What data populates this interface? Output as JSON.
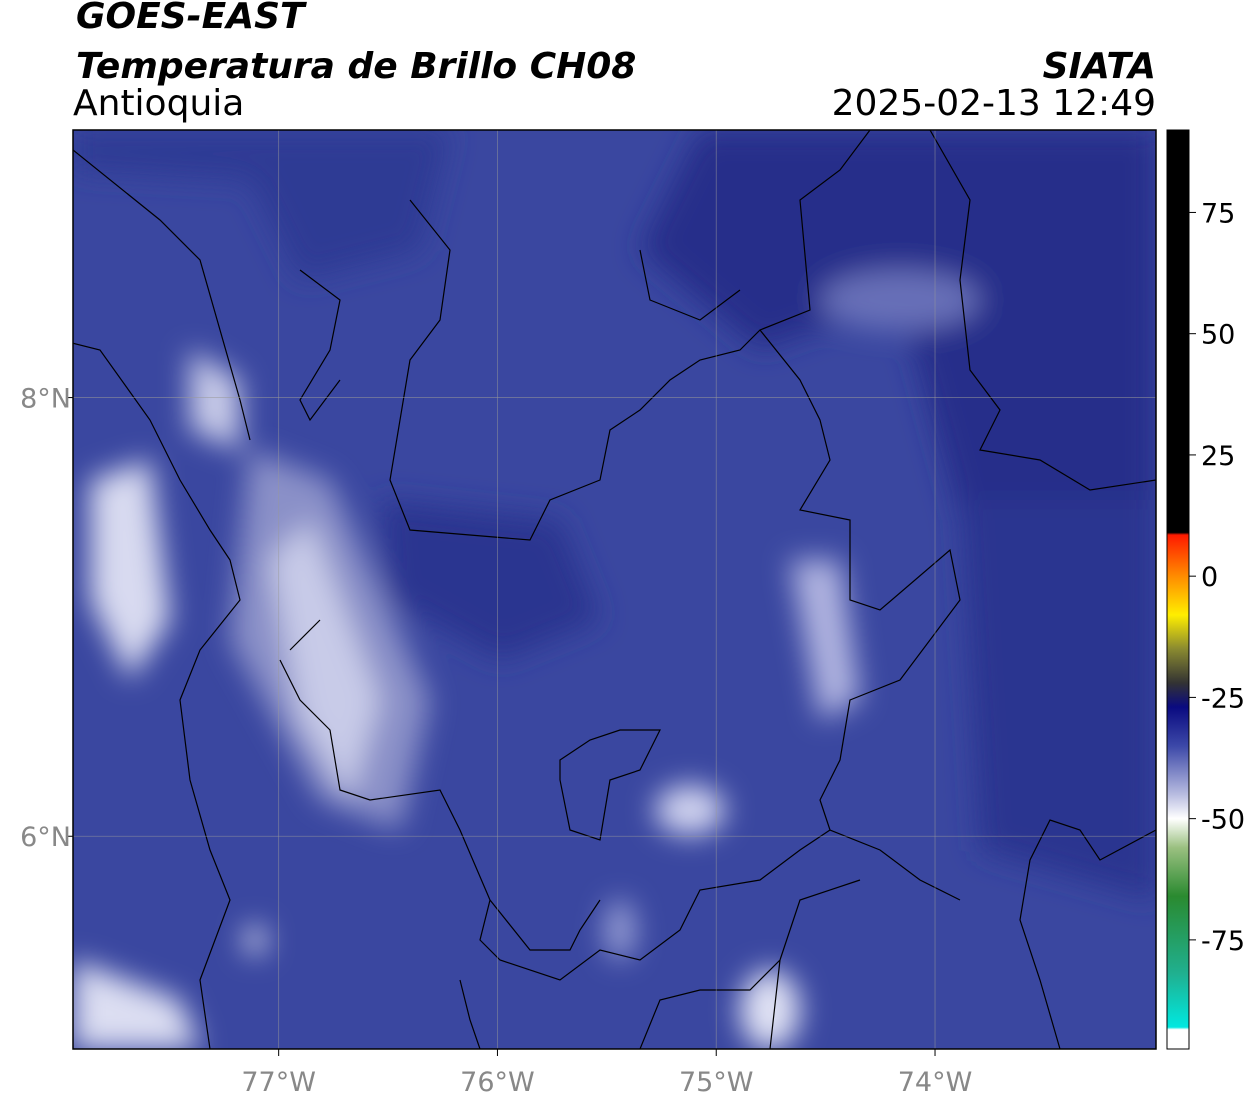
{
  "header": {
    "title": "GOES-EAST",
    "subtitle": "Temperatura de Brillo CH08",
    "region": "Antioquia",
    "source": "SIATA",
    "datetime": "2025-02-13 12:49"
  },
  "map": {
    "xlim": [
      -77.94,
      -72.99
    ],
    "ylim": [
      5.03,
      9.22
    ],
    "xticks": [
      {
        "value": -77,
        "label": "77°W"
      },
      {
        "value": -76,
        "label": "76°W"
      },
      {
        "value": -75,
        "label": "75°W"
      },
      {
        "value": -74,
        "label": "74°W"
      }
    ],
    "yticks": [
      {
        "value": 6,
        "label": "6°N"
      },
      {
        "value": 8,
        "label": "8°N"
      }
    ],
    "grid": true
  },
  "colorbar": {
    "lim": [
      -97.5,
      92
    ],
    "ticks": [
      75,
      50,
      25,
      0,
      -25,
      -50,
      -75
    ],
    "stops": [
      {
        "value": 92,
        "color": "#000000"
      },
      {
        "value": 9,
        "color": "#000000"
      },
      {
        "value": 8.5,
        "color": "#ff1a00"
      },
      {
        "value": 0,
        "color": "#ff8c00"
      },
      {
        "value": -8,
        "color": "#ffee00"
      },
      {
        "value": -15,
        "color": "#8a8a30"
      },
      {
        "value": -22,
        "color": "#333333"
      },
      {
        "value": -27,
        "color": "#0a0a80"
      },
      {
        "value": -35,
        "color": "#3c48a8"
      },
      {
        "value": -45,
        "color": "#b8bce0"
      },
      {
        "value": -50,
        "color": "#ffffff"
      },
      {
        "value": -56,
        "color": "#9ac080"
      },
      {
        "value": -66,
        "color": "#2a8a30"
      },
      {
        "value": -82,
        "color": "#20b090"
      },
      {
        "value": -93,
        "color": "#00e8e0"
      },
      {
        "value": -93.5,
        "color": "#ffffff"
      },
      {
        "value": -97.5,
        "color": "#ffffff"
      }
    ]
  }
}
